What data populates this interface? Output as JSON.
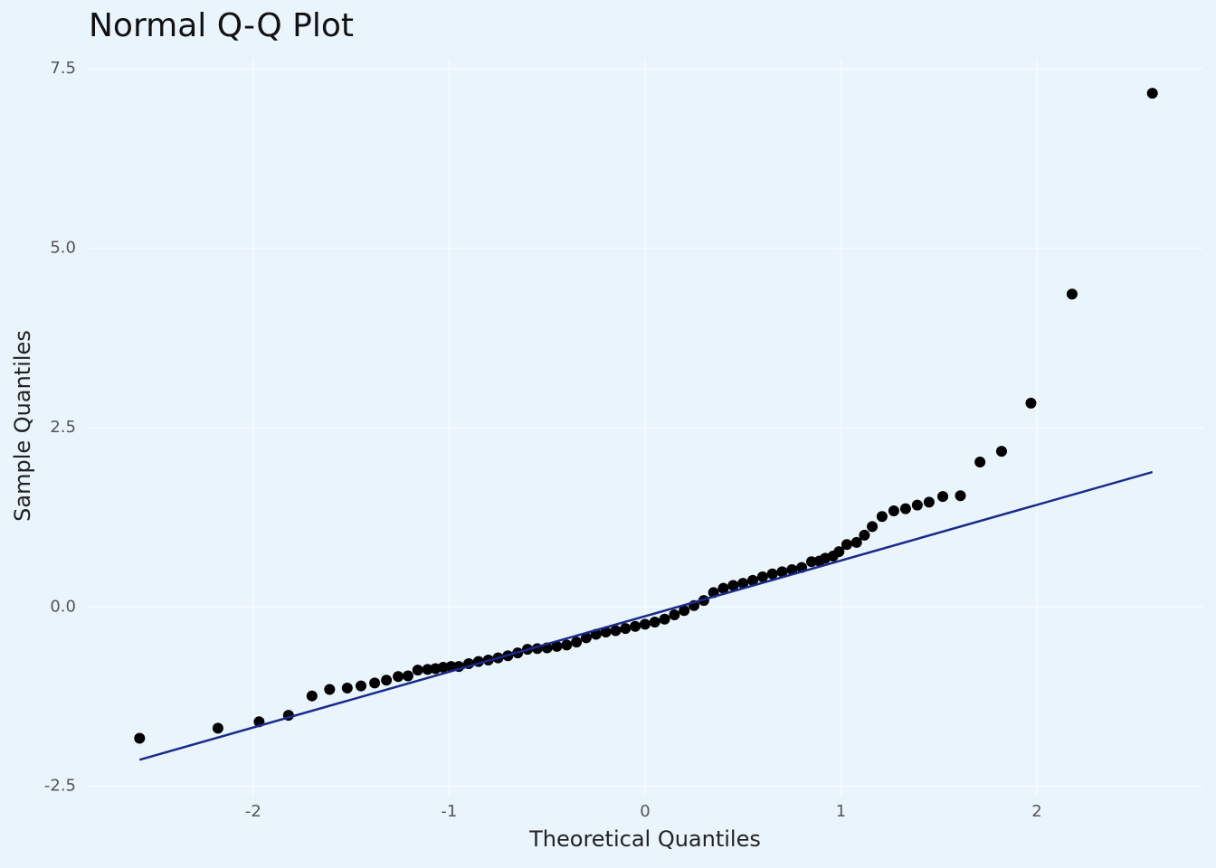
{
  "chart_data": {
    "type": "scatter",
    "title": "Normal Q-Q Plot",
    "x_label": "Theoretical Quantiles",
    "y_label": "Sample Quantiles",
    "color": "#000000",
    "x": [
      -2.58,
      -2.18,
      -1.97,
      -1.82,
      -1.7,
      -1.61,
      -1.52,
      -1.45,
      -1.38,
      -1.32,
      -1.26,
      -1.21,
      -1.16,
      -1.11,
      -1.07,
      -1.03,
      -0.99,
      -0.95,
      -0.9,
      -0.85,
      -0.8,
      -0.75,
      -0.7,
      -0.65,
      -0.6,
      -0.55,
      -0.5,
      -0.45,
      -0.4,
      -0.35,
      -0.3,
      -0.25,
      -0.2,
      -0.15,
      -0.1,
      -0.05,
      0.0,
      0.05,
      0.1,
      0.15,
      0.2,
      0.25,
      0.3,
      0.35,
      0.4,
      0.45,
      0.5,
      0.55,
      0.6,
      0.65,
      0.7,
      0.75,
      0.8,
      0.85,
      0.89,
      0.92,
      0.96,
      0.99,
      1.03,
      1.08,
      1.12,
      1.16,
      1.21,
      1.27,
      1.33,
      1.39,
      1.45,
      1.52,
      1.61,
      1.71,
      1.82,
      1.97,
      2.18,
      2.59
    ],
    "values": [
      -1.83,
      -1.69,
      -1.6,
      -1.51,
      -1.24,
      -1.15,
      -1.13,
      -1.1,
      -1.06,
      -1.02,
      -0.97,
      -0.96,
      -0.88,
      -0.87,
      -0.86,
      -0.84,
      -0.83,
      -0.83,
      -0.79,
      -0.76,
      -0.74,
      -0.71,
      -0.68,
      -0.64,
      -0.59,
      -0.58,
      -0.57,
      -0.55,
      -0.53,
      -0.49,
      -0.43,
      -0.38,
      -0.35,
      -0.33,
      -0.3,
      -0.27,
      -0.24,
      -0.21,
      -0.17,
      -0.11,
      -0.05,
      0.02,
      0.09,
      0.2,
      0.26,
      0.3,
      0.33,
      0.37,
      0.42,
      0.46,
      0.49,
      0.52,
      0.55,
      0.63,
      0.64,
      0.68,
      0.71,
      0.77,
      0.87,
      0.9,
      1.0,
      1.12,
      1.26,
      1.34,
      1.37,
      1.42,
      1.46,
      1.54,
      1.55,
      2.02,
      2.17,
      2.84,
      4.36,
      7.16
    ],
    "reference_line": {
      "x": [
        -2.58,
        2.59
      ],
      "y": [
        -2.13,
        1.88
      ],
      "color": "#1a2a8c"
    },
    "xlim": [
      -2.84,
      2.85
    ],
    "ylim": [
      -2.63,
      7.64
    ],
    "xticks": [
      -2,
      -1,
      0,
      1,
      2
    ],
    "yticks": [
      -2.5,
      {
        "value": 0,
        "label": "0.0"
      },
      2.5,
      {
        "value": 5,
        "label": "5.0"
      },
      7.5
    ],
    "grid": true
  }
}
